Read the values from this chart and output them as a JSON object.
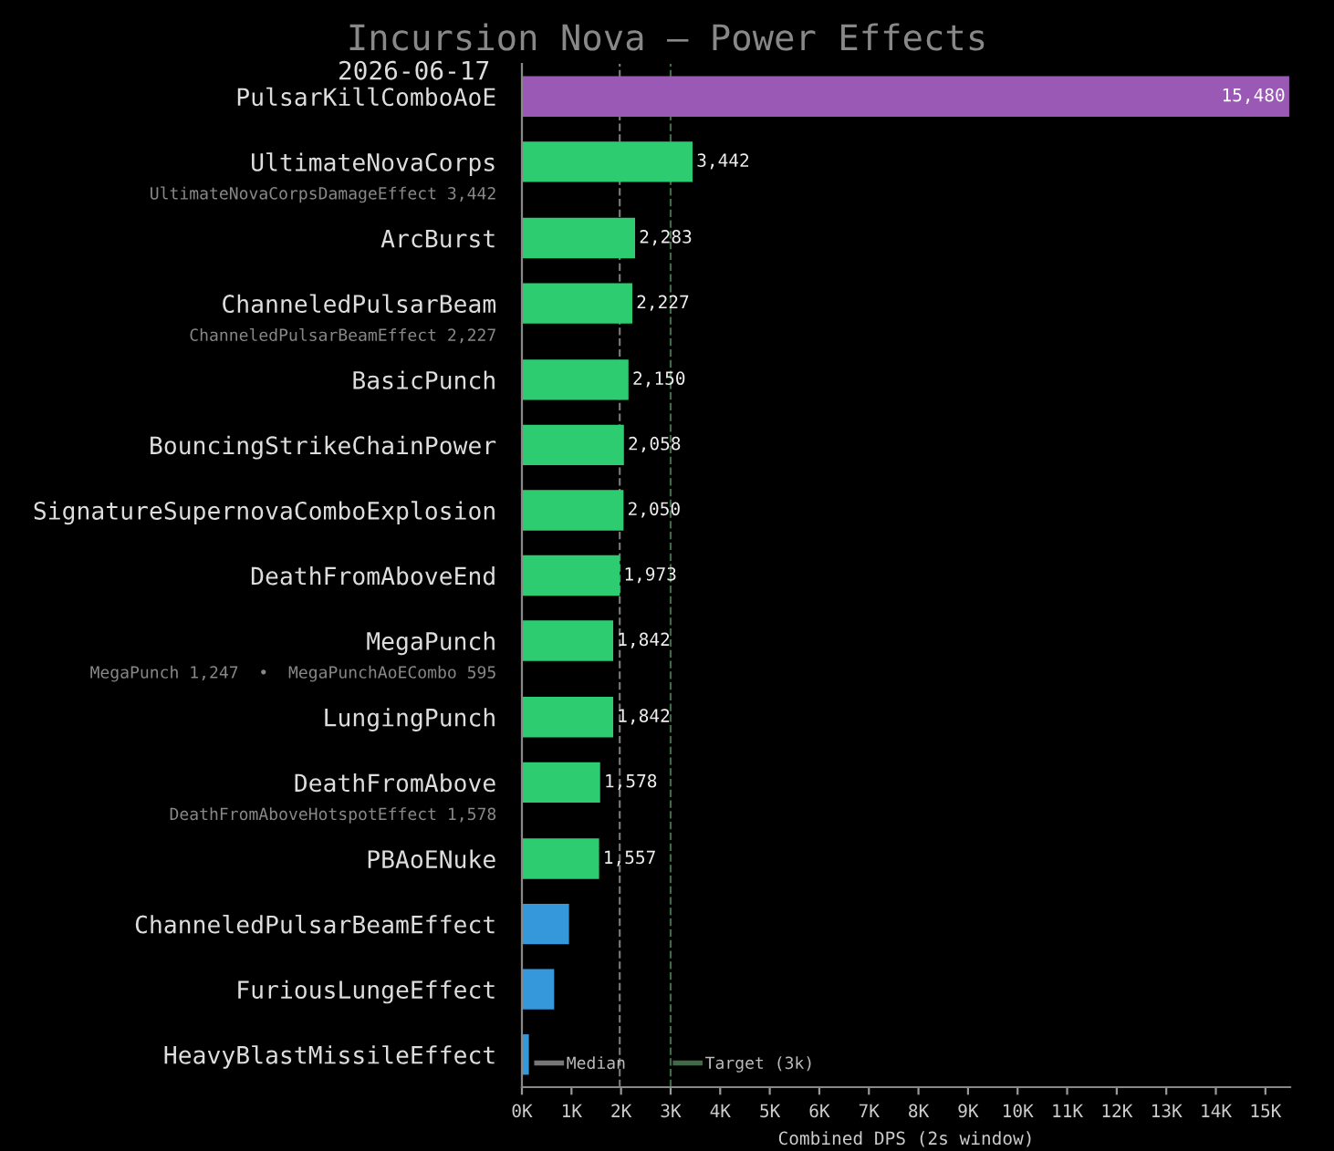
{
  "chart_data": {
    "type": "bar",
    "orientation": "horizontal",
    "title": "Incursion Nova — Power Effects",
    "subtitle": "2026-06-17",
    "xlabel": "Combined DPS (2s window)",
    "categories": [
      "PulsarKillComboAoE",
      "UltimateNovaCorps",
      "ArcBurst",
      "ChanneledPulsarBeam",
      "BasicPunch",
      "BouncingStrikeChainPower",
      "SignatureSupernovaComboExplosion",
      "DeathFromAboveEnd",
      "MegaPunch",
      "LungingPunch",
      "DeathFromAbove",
      "PBAoENuke",
      "ChanneledPulsarBeamEffect",
      "FuriousLungeEffect",
      "HeavyBlastMissileEffect"
    ],
    "values": [
      15480,
      3442,
      2283,
      2227,
      2150,
      2058,
      2050,
      1973,
      1842,
      1842,
      1578,
      1557,
      950,
      650,
      140
    ],
    "colors": [
      "#9b59b6",
      "#2ecc71",
      "#2ecc71",
      "#2ecc71",
      "#2ecc71",
      "#2ecc71",
      "#2ecc71",
      "#2ecc71",
      "#2ecc71",
      "#2ecc71",
      "#2ecc71",
      "#2ecc71",
      "#3498db",
      "#3498db",
      "#3498db"
    ],
    "value_labels": [
      "15,480",
      "3,442",
      "2,283",
      "2,227",
      "2,150",
      "2,058",
      "2,050",
      "1,973",
      "1,842",
      "1,842",
      "1,578",
      "1,557",
      null,
      null,
      null
    ],
    "annotations": [
      "UltimateNovaCorpsDamageEffect 3,442",
      "ChanneledPulsarBeamEffect 2,227",
      "MegaPunch 1,247  •  MegaPunchAoECombo 595",
      "DeathFromAboveHotspotEffect 1,578"
    ],
    "xlim": [
      0,
      15500
    ],
    "xticks": [
      {
        "value": 0,
        "label": "0K"
      },
      {
        "value": 1000,
        "label": "1K"
      },
      {
        "value": 2000,
        "label": "2K"
      },
      {
        "value": 3000,
        "label": "3K"
      },
      {
        "value": 4000,
        "label": "4K"
      },
      {
        "value": 5000,
        "label": "5K"
      },
      {
        "value": 6000,
        "label": "6K"
      },
      {
        "value": 7000,
        "label": "7K"
      },
      {
        "value": 8000,
        "label": "8K"
      },
      {
        "value": 9000,
        "label": "9K"
      },
      {
        "value": 10000,
        "label": "10K"
      },
      {
        "value": 11000,
        "label": "11K"
      },
      {
        "value": 12000,
        "label": "12K"
      },
      {
        "value": 13000,
        "label": "13K"
      },
      {
        "value": 14000,
        "label": "14K"
      },
      {
        "value": 15000,
        "label": "15K"
      }
    ],
    "ref_lines": [
      {
        "axis": "x",
        "value": 1973,
        "label": "Median",
        "color": "#777777",
        "line_style": "dashed"
      },
      {
        "axis": "x",
        "value": 3000,
        "label": "Target (3k)",
        "color": "#3e6b45",
        "line_style": "dashed"
      }
    ],
    "grid": false,
    "legend": "bottom left"
  }
}
